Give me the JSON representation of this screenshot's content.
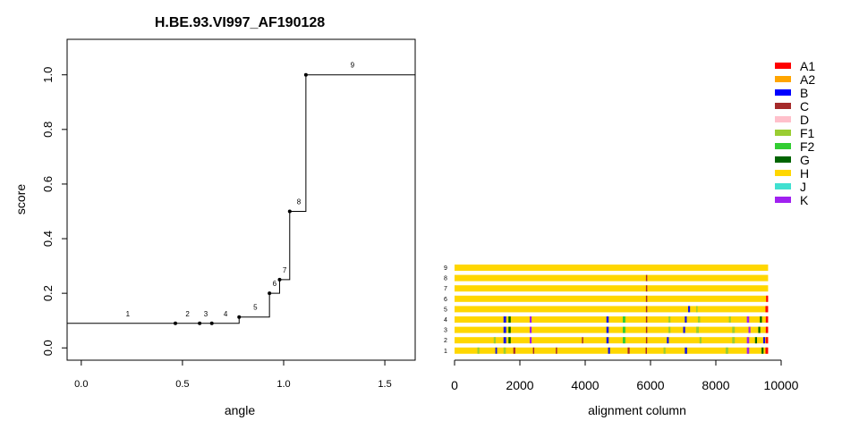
{
  "chart_data": [
    {
      "type": "step",
      "title": "H.BE.93.VI997_AF190128",
      "xlabel": "angle",
      "ylabel": "score",
      "xlim": [
        -0.07,
        1.65
      ],
      "ylim": [
        -0.045,
        1.13
      ],
      "x_ticks": [
        0.0,
        0.5,
        1.0,
        1.5
      ],
      "x_tick_labels": [
        "0.0",
        "0.5",
        "1.0",
        "1.5"
      ],
      "y_ticks": [
        0.0,
        0.2,
        0.4,
        0.6,
        0.8,
        1.0
      ],
      "y_tick_labels": [
        "0.0",
        "0.2",
        "0.4",
        "0.6",
        "0.8",
        "1.0"
      ],
      "grid": false,
      "step_points": [
        {
          "x": 0.465,
          "y": 0.09
        },
        {
          "x": 0.585,
          "y": 0.09
        },
        {
          "x": 0.645,
          "y": 0.09
        },
        {
          "x": 0.78,
          "y": 0.113
        },
        {
          "x": 0.93,
          "y": 0.2
        },
        {
          "x": 0.98,
          "y": 0.25
        },
        {
          "x": 1.03,
          "y": 0.5
        },
        {
          "x": 1.11,
          "y": 1.0
        }
      ],
      "segment_labels": [
        {
          "text": "1",
          "x": 0.23,
          "y": 0.09
        },
        {
          "text": "2",
          "x": 0.525,
          "y": 0.09
        },
        {
          "text": "3",
          "x": 0.615,
          "y": 0.09
        },
        {
          "text": "4",
          "x": 0.713,
          "y": 0.09
        },
        {
          "text": "5",
          "x": 0.86,
          "y": 0.113
        },
        {
          "text": "6",
          "x": 0.955,
          "y": 0.2
        },
        {
          "text": "7",
          "x": 1.005,
          "y": 0.25
        },
        {
          "text": "8",
          "x": 1.075,
          "y": 0.5
        },
        {
          "text": "9",
          "x": 1.34,
          "y": 1.0
        }
      ]
    },
    {
      "type": "alignment",
      "xlabel": "alignment column",
      "xlim": [
        0,
        10000
      ],
      "x_ticks": [
        0,
        2000,
        4000,
        6000,
        8000,
        10000
      ],
      "x_tick_labels": [
        "0",
        "2000",
        "4000",
        "6000",
        "8000",
        "10000"
      ],
      "alignment_length": 9600,
      "base_color": "#FFD700",
      "rows": [
        {
          "label": "1",
          "segments": [
            {
              "start": 700,
              "end": 760,
              "color": "#9ACD32"
            },
            {
              "start": 1250,
              "end": 1300,
              "color": "#1414E6"
            },
            {
              "start": 1500,
              "end": 1570,
              "color": "#9ACD32"
            },
            {
              "start": 1800,
              "end": 1860,
              "color": "#A52A2A"
            },
            {
              "start": 2400,
              "end": 2440,
              "color": "#A52A2A"
            },
            {
              "start": 3100,
              "end": 3140,
              "color": "#A52A2A"
            },
            {
              "start": 4700,
              "end": 4760,
              "color": "#1414E6"
            },
            {
              "start": 5300,
              "end": 5360,
              "color": "#A52A2A"
            },
            {
              "start": 5850,
              "end": 5890,
              "color": "#A52A2A"
            },
            {
              "start": 6400,
              "end": 6460,
              "color": "#9ACD32"
            },
            {
              "start": 7050,
              "end": 7120,
              "color": "#1414E6"
            },
            {
              "start": 8300,
              "end": 8380,
              "color": "#9ACD32"
            },
            {
              "start": 8950,
              "end": 9020,
              "color": "#A020F0"
            },
            {
              "start": 9400,
              "end": 9460,
              "color": "#006400"
            },
            {
              "start": 9520,
              "end": 9600,
              "color": "#FF0000"
            }
          ]
        },
        {
          "label": "2",
          "segments": [
            {
              "start": 1200,
              "end": 1260,
              "color": "#9ACD32"
            },
            {
              "start": 1500,
              "end": 1580,
              "color": "#1414E6"
            },
            {
              "start": 1650,
              "end": 1720,
              "color": "#006400"
            },
            {
              "start": 2300,
              "end": 2360,
              "color": "#A020F0"
            },
            {
              "start": 3900,
              "end": 3940,
              "color": "#A52A2A"
            },
            {
              "start": 4650,
              "end": 4720,
              "color": "#1414E6"
            },
            {
              "start": 5150,
              "end": 5230,
              "color": "#32CD32"
            },
            {
              "start": 5860,
              "end": 5900,
              "color": "#A52A2A"
            },
            {
              "start": 6500,
              "end": 6560,
              "color": "#1414E6"
            },
            {
              "start": 7500,
              "end": 7560,
              "color": "#9ACD32"
            },
            {
              "start": 8500,
              "end": 8580,
              "color": "#9ACD32"
            },
            {
              "start": 8950,
              "end": 9020,
              "color": "#A020F0"
            },
            {
              "start": 9200,
              "end": 9260,
              "color": "#006400"
            },
            {
              "start": 9450,
              "end": 9510,
              "color": "#1414E6"
            },
            {
              "start": 9530,
              "end": 9600,
              "color": "#FF0000"
            }
          ]
        },
        {
          "label": "3",
          "segments": [
            {
              "start": 1500,
              "end": 1580,
              "color": "#1414E6"
            },
            {
              "start": 1650,
              "end": 1720,
              "color": "#006400"
            },
            {
              "start": 2300,
              "end": 2360,
              "color": "#A020F0"
            },
            {
              "start": 4650,
              "end": 4720,
              "color": "#1414E6"
            },
            {
              "start": 5150,
              "end": 5230,
              "color": "#32CD32"
            },
            {
              "start": 5860,
              "end": 5900,
              "color": "#A52A2A"
            },
            {
              "start": 6550,
              "end": 6610,
              "color": "#9ACD32"
            },
            {
              "start": 7000,
              "end": 7060,
              "color": "#1414E6"
            },
            {
              "start": 7400,
              "end": 7480,
              "color": "#9ACD32"
            },
            {
              "start": 8500,
              "end": 8580,
              "color": "#9ACD32"
            },
            {
              "start": 9000,
              "end": 9060,
              "color": "#A020F0"
            },
            {
              "start": 9300,
              "end": 9360,
              "color": "#006400"
            },
            {
              "start": 9530,
              "end": 9600,
              "color": "#FF0000"
            }
          ]
        },
        {
          "label": "4",
          "segments": [
            {
              "start": 1500,
              "end": 1580,
              "color": "#1414E6"
            },
            {
              "start": 1650,
              "end": 1720,
              "color": "#006400"
            },
            {
              "start": 2300,
              "end": 2360,
              "color": "#A020F0"
            },
            {
              "start": 4650,
              "end": 4720,
              "color": "#1414E6"
            },
            {
              "start": 5150,
              "end": 5230,
              "color": "#32CD32"
            },
            {
              "start": 5860,
              "end": 5900,
              "color": "#A52A2A"
            },
            {
              "start": 6550,
              "end": 6610,
              "color": "#9ACD32"
            },
            {
              "start": 7050,
              "end": 7110,
              "color": "#1414E6"
            },
            {
              "start": 7450,
              "end": 7520,
              "color": "#9ACD32"
            },
            {
              "start": 8400,
              "end": 8460,
              "color": "#9ACD32"
            },
            {
              "start": 8950,
              "end": 9020,
              "color": "#A020F0"
            },
            {
              "start": 9350,
              "end": 9410,
              "color": "#006400"
            },
            {
              "start": 9530,
              "end": 9600,
              "color": "#FF0000"
            }
          ]
        },
        {
          "label": "5",
          "segments": [
            {
              "start": 5860,
              "end": 5900,
              "color": "#A52A2A"
            },
            {
              "start": 7150,
              "end": 7210,
              "color": "#1414E6"
            },
            {
              "start": 7400,
              "end": 7440,
              "color": "#9ACD32"
            },
            {
              "start": 9520,
              "end": 9600,
              "color": "#FF0000"
            }
          ]
        },
        {
          "label": "6",
          "segments": [
            {
              "start": 5860,
              "end": 5900,
              "color": "#A52A2A"
            },
            {
              "start": 9540,
              "end": 9600,
              "color": "#FF0000"
            }
          ]
        },
        {
          "label": "7",
          "segments": [
            {
              "start": 5860,
              "end": 5900,
              "color": "#A52A2A"
            }
          ]
        },
        {
          "label": "8",
          "segments": [
            {
              "start": 5860,
              "end": 5900,
              "color": "#A52A2A"
            }
          ]
        },
        {
          "label": "9",
          "segments": []
        }
      ]
    }
  ],
  "legend": {
    "placement": "top-right",
    "items": [
      {
        "label": "A1",
        "color": "#FF0000"
      },
      {
        "label": "A2",
        "color": "#FFA500"
      },
      {
        "label": "B",
        "color": "#0000FF"
      },
      {
        "label": "C",
        "color": "#A52A2A"
      },
      {
        "label": "D",
        "color": "#FFC0CB"
      },
      {
        "label": "F1",
        "color": "#9ACD32"
      },
      {
        "label": "F2",
        "color": "#32CD32"
      },
      {
        "label": "G",
        "color": "#006400"
      },
      {
        "label": "H",
        "color": "#FFD700"
      },
      {
        "label": "J",
        "color": "#40E0D0"
      },
      {
        "label": "K",
        "color": "#A020F0"
      }
    ]
  }
}
